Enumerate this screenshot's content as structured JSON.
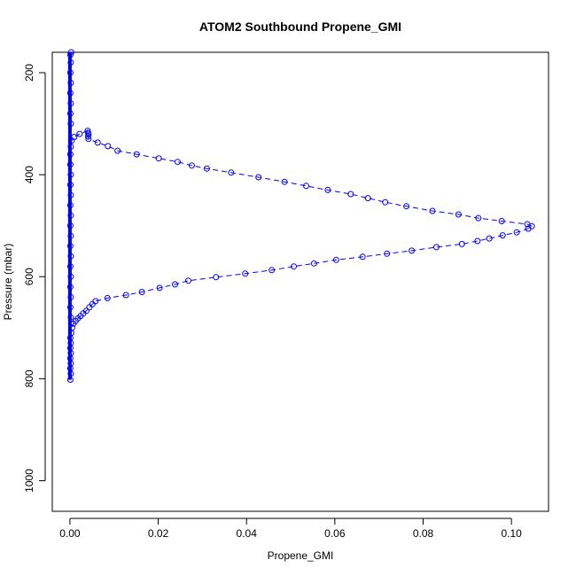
{
  "chart_data": {
    "type": "scatter",
    "title": "ATOM2 Southbound Propene_GMI",
    "xlabel": "Propene_GMI",
    "ylabel": "Pressure (mbar)",
    "xlim": [
      -0.004,
      0.1084
    ],
    "ylim": [
      1060,
      160
    ],
    "y_reversed": true,
    "x_ticks": [
      0.0,
      0.02,
      0.04,
      0.06,
      0.08,
      0.1
    ],
    "x_tick_labels": [
      "0.00",
      "0.02",
      "0.04",
      "0.06",
      "0.08",
      "0.10"
    ],
    "y_ticks": [
      200,
      400,
      600,
      800,
      1000
    ],
    "y_tick_labels": [
      "200",
      "400",
      "600",
      "800",
      "1000"
    ],
    "grid": false,
    "marker": "open-circle",
    "line_style": "dashed",
    "colors": {
      "series": "#0000ff",
      "axis": "#000000",
      "background": "#ffffff"
    },
    "series": [
      {
        "points": [
          [
            0.0001,
            802
          ],
          [
            0.0002,
            790
          ],
          [
            0.0001,
            780
          ],
          [
            0.0002,
            770
          ],
          [
            0.0001,
            760
          ],
          [
            0.0002,
            750
          ],
          [
            0.0001,
            740
          ],
          [
            0.0002,
            730
          ],
          [
            0.0001,
            720
          ],
          [
            0.0003,
            710
          ],
          [
            0.0005,
            700
          ],
          [
            0.0008,
            692
          ],
          [
            0.0013,
            687
          ],
          [
            0.0018,
            682
          ],
          [
            0.0024,
            677
          ],
          [
            0.003,
            672
          ],
          [
            0.0037,
            667
          ],
          [
            0.0044,
            660
          ],
          [
            0.0051,
            654
          ],
          [
            0.0058,
            648
          ],
          [
            0.0085,
            642
          ],
          [
            0.0127,
            636
          ],
          [
            0.0163,
            630
          ],
          [
            0.0203,
            622
          ],
          [
            0.0238,
            615
          ],
          [
            0.0268,
            608
          ],
          [
            0.0331,
            601
          ],
          [
            0.0397,
            594
          ],
          [
            0.0457,
            587
          ],
          [
            0.0507,
            580
          ],
          [
            0.0553,
            574
          ],
          [
            0.0603,
            567
          ],
          [
            0.0663,
            561
          ],
          [
            0.0718,
            555
          ],
          [
            0.0774,
            549
          ],
          [
            0.083,
            542
          ],
          [
            0.0888,
            536
          ],
          [
            0.0923,
            530
          ],
          [
            0.095,
            525
          ],
          [
            0.098,
            519
          ],
          [
            0.1012,
            513
          ],
          [
            0.1038,
            506
          ],
          [
            0.1046,
            501
          ],
          [
            0.1036,
            497
          ],
          [
            0.0978,
            491
          ],
          [
            0.0925,
            485
          ],
          [
            0.088,
            478
          ],
          [
            0.0821,
            471
          ],
          [
            0.0762,
            462
          ],
          [
            0.0714,
            454
          ],
          [
            0.0675,
            446
          ],
          [
            0.0636,
            438
          ],
          [
            0.0584,
            430
          ],
          [
            0.0535,
            422
          ],
          [
            0.0486,
            414
          ],
          [
            0.0427,
            405
          ],
          [
            0.0365,
            396
          ],
          [
            0.031,
            388
          ],
          [
            0.0276,
            382
          ],
          [
            0.0244,
            375
          ],
          [
            0.0201,
            368
          ],
          [
            0.0151,
            360
          ],
          [
            0.0108,
            353
          ],
          [
            0.0086,
            344
          ],
          [
            0.0063,
            337
          ],
          [
            0.0042,
            330
          ],
          [
            0.0041,
            325
          ],
          [
            0.0042,
            321
          ],
          [
            0.0041,
            318
          ],
          [
            0.004,
            314
          ],
          [
            0.0022,
            320
          ],
          [
            0.001,
            326
          ],
          [
            0.0004,
            333
          ],
          [
            0.0002,
            345
          ],
          [
            0.0001,
            360
          ],
          [
            0.0001,
            380
          ],
          [
            0.0002,
            400
          ],
          [
            0.0001,
            420
          ],
          [
            0.0002,
            440
          ],
          [
            0.0001,
            460
          ],
          [
            0.0002,
            480
          ],
          [
            0.0001,
            500
          ],
          [
            0.0002,
            520
          ],
          [
            0.0001,
            540
          ],
          [
            0.0002,
            560
          ],
          [
            0.0001,
            580
          ],
          [
            0.0002,
            600
          ],
          [
            0.0001,
            620
          ],
          [
            0.0002,
            640
          ],
          [
            0.0001,
            660
          ],
          [
            0.0002,
            680
          ],
          [
            0.0002,
            300
          ],
          [
            0.0001,
            280
          ],
          [
            0.0002,
            260
          ],
          [
            0.0001,
            240
          ],
          [
            0.0002,
            220
          ],
          [
            0.0001,
            200
          ],
          [
            0.0002,
            180
          ],
          [
            0.0001,
            165
          ],
          [
            0.0003,
            160
          ]
        ]
      }
    ]
  }
}
